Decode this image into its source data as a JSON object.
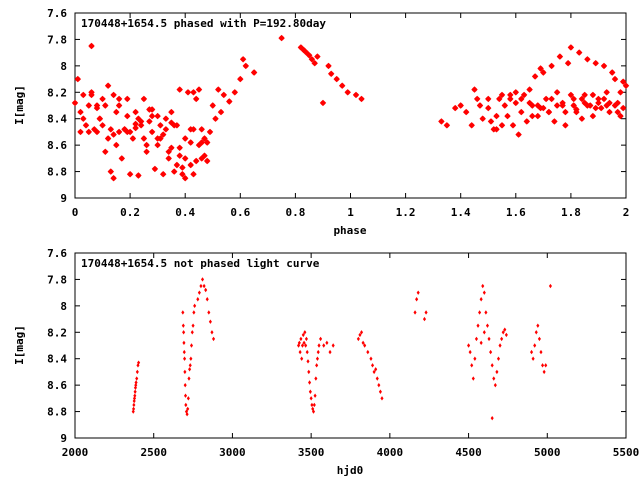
{
  "chart_data": [
    {
      "type": "scatter",
      "title": "170448+1654.5 phased with P=192.80day",
      "xlabel": "phase",
      "ylabel": "I[mag]",
      "xlim": [
        0,
        2
      ],
      "ylim": [
        7.6,
        9
      ],
      "y_inverted": true,
      "xticks": [
        "0",
        "0.2",
        "0.4",
        "0.6",
        "0.8",
        "1",
        "1.2",
        "1.4",
        "1.6",
        "1.8",
        "2"
      ],
      "yticks": [
        "7.6",
        "7.8",
        "8",
        "8.2",
        "8.4",
        "8.6",
        "8.8",
        "9"
      ],
      "marker": "star",
      "color": "#ff0000",
      "series": [
        {
          "x": [
            0.0,
            0.01,
            0.02,
            0.03,
            0.03,
            0.04,
            0.05,
            0.05,
            0.06,
            0.06,
            0.07,
            0.08,
            0.08,
            0.09,
            0.1,
            0.1,
            0.11,
            0.12,
            0.13,
            0.13,
            0.14,
            0.14,
            0.15,
            0.16,
            0.16,
            0.17,
            0.18,
            0.19,
            0.19,
            0.2,
            0.21,
            0.22,
            0.22,
            0.23,
            0.24,
            0.25,
            0.25,
            0.26,
            0.27,
            0.28,
            0.28,
            0.29,
            0.3,
            0.3,
            0.31,
            0.32,
            0.33,
            0.33,
            0.34,
            0.35,
            0.35,
            0.36,
            0.37,
            0.37,
            0.38,
            0.38,
            0.39,
            0.4,
            0.4,
            0.41,
            0.42,
            0.42,
            0.43,
            0.43,
            0.44,
            0.45,
            0.45,
            0.46,
            0.46,
            0.47,
            0.48,
            0.48,
            0.49,
            0.5,
            0.51,
            0.52,
            0.53,
            0.54,
            0.56,
            0.58,
            0.6,
            0.61,
            0.62,
            0.65,
            0.75,
            0.82,
            0.83,
            0.84,
            0.85,
            0.86,
            0.87,
            0.88,
            0.9,
            0.92,
            0.93,
            0.95,
            0.97,
            0.99,
            1.02,
            1.04,
            0.06,
            0.02,
            0.08,
            0.12,
            0.16,
            0.2,
            0.24,
            0.28,
            0.32,
            0.36,
            0.4,
            0.44,
            0.11,
            0.15,
            0.19,
            0.23,
            0.27,
            0.31,
            0.35,
            0.39,
            0.43,
            0.47,
            0.09,
            0.26,
            0.34,
            0.42,
            0.14,
            0.18,
            0.22,
            0.3,
            0.38,
            0.46
          ],
          "y": [
            8.28,
            8.1,
            8.35,
            8.22,
            8.4,
            8.45,
            8.3,
            8.5,
            7.85,
            8.2,
            8.48,
            8.32,
            8.5,
            8.4,
            8.45,
            8.25,
            8.65,
            8.55,
            8.8,
            8.48,
            8.85,
            8.22,
            8.6,
            8.5,
            8.3,
            8.7,
            8.48,
            8.25,
            8.38,
            8.82,
            8.55,
            8.47,
            8.35,
            8.83,
            8.45,
            8.55,
            8.25,
            8.65,
            8.42,
            8.5,
            8.33,
            8.78,
            8.55,
            8.6,
            8.45,
            8.82,
            8.48,
            8.4,
            8.7,
            8.35,
            8.62,
            8.8,
            8.75,
            8.45,
            8.68,
            8.18,
            8.82,
            8.7,
            8.55,
            8.2,
            8.75,
            8.48,
            8.82,
            8.2,
            8.72,
            8.6,
            8.18,
            8.48,
            8.7,
            8.55,
            8.72,
            8.58,
            8.5,
            8.3,
            8.4,
            8.18,
            8.35,
            8.22,
            8.27,
            8.2,
            8.1,
            7.95,
            8.0,
            8.05,
            7.79,
            7.86,
            7.88,
            7.9,
            7.92,
            7.95,
            7.98,
            7.93,
            8.28,
            8.0,
            8.06,
            8.1,
            8.15,
            8.2,
            8.22,
            8.25,
            8.22,
            8.5,
            8.3,
            8.15,
            8.25,
            8.5,
            8.42,
            8.38,
            8.52,
            8.45,
            8.85,
            8.25,
            8.3,
            8.35,
            8.5,
            8.4,
            8.33,
            8.55,
            8.43,
            8.77,
            8.48,
            8.68,
            8.4,
            8.6,
            8.65,
            8.58,
            8.52,
            8.48,
            8.44,
            8.38,
            8.62,
            8.58
          ]
        },
        {
          "x": [
            1.33,
            1.35,
            1.38,
            1.4,
            1.42,
            1.44,
            1.46,
            1.47,
            1.48,
            1.5,
            1.51,
            1.52,
            1.53,
            1.54,
            1.55,
            1.56,
            1.57,
            1.58,
            1.59,
            1.6,
            1.61,
            1.62,
            1.63,
            1.64,
            1.65,
            1.66,
            1.67,
            1.68,
            1.69,
            1.7,
            1.71,
            1.72,
            1.73,
            1.74,
            1.75,
            1.76,
            1.77,
            1.78,
            1.79,
            1.8,
            1.81,
            1.82,
            1.83,
            1.84,
            1.85,
            1.86,
            1.87,
            1.88,
            1.89,
            1.9,
            1.91,
            1.92,
            1.93,
            1.94,
            1.95,
            1.96,
            1.97,
            1.98,
            1.99,
            2.0,
            1.62,
            1.65,
            1.68,
            1.7,
            1.72,
            1.75,
            1.78,
            1.8,
            1.82,
            1.84,
            1.86,
            1.88,
            1.9,
            1.92,
            1.94,
            1.96,
            1.98,
            1.55,
            1.58,
            1.6,
            1.66,
            1.69,
            1.73,
            1.77,
            1.81,
            1.85,
            1.89,
            1.93,
            1.97,
            1.99,
            1.45,
            1.5,
            1.53
          ],
          "y": [
            8.42,
            8.45,
            8.32,
            8.3,
            8.35,
            8.45,
            8.25,
            8.3,
            8.4,
            8.32,
            8.42,
            8.48,
            8.38,
            8.25,
            8.45,
            8.3,
            8.38,
            8.22,
            8.45,
            8.28,
            8.52,
            8.35,
            8.22,
            8.42,
            8.18,
            8.3,
            8.08,
            8.38,
            8.02,
            8.05,
            8.25,
            8.35,
            8.0,
            8.42,
            8.2,
            7.93,
            8.3,
            8.45,
            7.98,
            7.86,
            8.25,
            8.35,
            7.9,
            8.4,
            8.22,
            7.95,
            8.3,
            8.38,
            7.98,
            8.25,
            8.32,
            8.0,
            8.2,
            8.35,
            8.05,
            8.1,
            8.28,
            8.38,
            8.12,
            8.15,
            8.25,
            8.28,
            8.3,
            8.32,
            8.35,
            8.3,
            8.35,
            8.22,
            8.33,
            8.25,
            8.3,
            8.22,
            8.28,
            8.25,
            8.28,
            8.3,
            8.2,
            8.22,
            8.25,
            8.2,
            8.38,
            8.32,
            8.25,
            8.28,
            8.3,
            8.28,
            8.32,
            8.3,
            8.35,
            8.32,
            8.18,
            8.25,
            8.48
          ]
        }
      ]
    },
    {
      "type": "scatter",
      "title": "170448+1654.5 not phased light curve",
      "xlabel": "hjd0",
      "ylabel": "I[mag]",
      "xlim": [
        2000,
        5500
      ],
      "ylim": [
        7.6,
        9
      ],
      "y_inverted": true,
      "xticks": [
        "2000",
        "2500",
        "3000",
        "3500",
        "4000",
        "4500",
        "5000",
        "5500"
      ],
      "yticks": [
        "7.6",
        "7.8",
        "8",
        "8.2",
        "8.4",
        "8.6",
        "8.8",
        "9"
      ],
      "marker": "diamond",
      "color": "#ff0000",
      "series": [
        {
          "x": [
            2370,
            2372,
            2374,
            2376,
            2378,
            2380,
            2382,
            2384,
            2386,
            2388,
            2392,
            2396,
            2400,
            2404,
            2685,
            2688,
            2690,
            2692,
            2694,
            2696,
            2698,
            2700,
            2702,
            2704,
            2708,
            2712,
            2716,
            2720,
            2724,
            2728,
            2732,
            2736,
            2740,
            2745,
            2750,
            2755,
            2760,
            2780,
            2790,
            2800,
            2810,
            2820,
            2830,
            2840,
            2850,
            2860,
            2870,
            2880,
            3420,
            3425,
            3430,
            3435,
            3440,
            3445,
            3450,
            3455,
            3460,
            3465,
            3470,
            3475,
            3480,
            3485,
            3490,
            3495,
            3500,
            3505,
            3510,
            3515,
            3520,
            3525,
            3530,
            3535,
            3540,
            3545,
            3550,
            3560,
            3580,
            3600,
            3620,
            3640,
            3800,
            3810,
            3820,
            3830,
            3840,
            3860,
            3880,
            3890,
            3900,
            3910,
            3920,
            3930,
            3940,
            3950,
            4160,
            4170,
            4180,
            4220,
            4230,
            4500,
            4510,
            4520,
            4530,
            4540,
            4550,
            4560,
            4570,
            4580,
            4590,
            4600,
            4610,
            4620,
            4630,
            4640,
            4650,
            4660,
            4670,
            4680,
            4690,
            4700,
            4710,
            4720,
            4730,
            4740,
            4900,
            4910,
            4920,
            4930,
            4940,
            4950,
            4960,
            4970,
            4980,
            4990,
            5020,
            4650,
            4580,
            4600
          ],
          "y": [
            8.8,
            8.78,
            8.75,
            8.72,
            8.7,
            8.68,
            8.65,
            8.62,
            8.6,
            8.58,
            8.55,
            8.5,
            8.45,
            8.43,
            8.05,
            8.15,
            8.2,
            8.28,
            8.35,
            8.4,
            8.5,
            8.6,
            8.68,
            8.75,
            8.8,
            8.82,
            8.78,
            8.7,
            8.55,
            8.48,
            8.45,
            8.4,
            8.3,
            8.2,
            8.15,
            8.05,
            8.0,
            7.95,
            7.9,
            7.85,
            7.8,
            7.85,
            7.88,
            7.95,
            8.05,
            8.12,
            8.2,
            8.25,
            8.3,
            8.28,
            8.35,
            8.25,
            8.4,
            8.3,
            8.22,
            8.28,
            8.2,
            8.3,
            8.25,
            8.35,
            8.42,
            8.5,
            8.58,
            8.65,
            8.7,
            8.75,
            8.78,
            8.8,
            8.75,
            8.68,
            8.55,
            8.45,
            8.4,
            8.35,
            8.3,
            8.25,
            8.3,
            8.28,
            8.35,
            8.3,
            8.25,
            8.22,
            8.2,
            8.28,
            8.3,
            8.35,
            8.4,
            8.45,
            8.5,
            8.48,
            8.55,
            8.6,
            8.65,
            8.7,
            8.05,
            7.95,
            7.9,
            8.1,
            8.05,
            8.3,
            8.35,
            8.45,
            8.55,
            8.4,
            8.25,
            8.15,
            8.05,
            7.95,
            7.85,
            7.9,
            8.05,
            8.15,
            8.25,
            8.35,
            8.45,
            8.55,
            8.6,
            8.5,
            8.4,
            8.3,
            8.25,
            8.2,
            8.18,
            8.22,
            8.35,
            8.4,
            8.3,
            8.2,
            8.15,
            8.25,
            8.35,
            8.45,
            8.5,
            8.45,
            7.85,
            8.85,
            8.28,
            8.2
          ]
        }
      ]
    }
  ]
}
